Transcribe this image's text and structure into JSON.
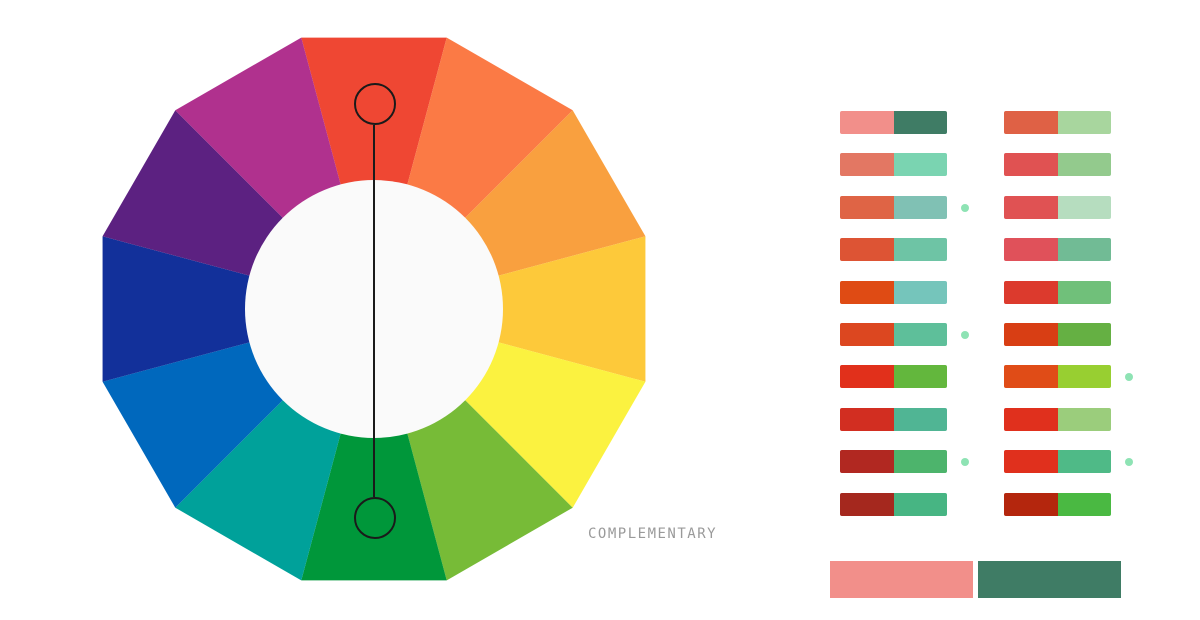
{
  "wheel": {
    "segments": [
      "#ef4733",
      "#fb7a45",
      "#f9a03f",
      "#fdc93a",
      "#fbf240",
      "#77bb37",
      "#00973a",
      "#00a19a",
      "#0068bd",
      "#12309a",
      "#5c2181",
      "#b0318e"
    ],
    "center_color": "#fafafa",
    "handle_color": "#1a1a1a"
  },
  "scheme": {
    "label": "COMPLEMENTARY"
  },
  "palettes": {
    "accent": "#8ee3b4",
    "left": [
      {
        "a": "#f28f8a",
        "b": "#3f7c65",
        "marked": false
      },
      {
        "a": "#e37763",
        "b": "#7ad4b1",
        "marked": false
      },
      {
        "a": "#df6445",
        "b": "#80c1b4",
        "marked": true
      },
      {
        "a": "#dd5434",
        "b": "#6ec4a5",
        "marked": false
      },
      {
        "a": "#df4b14",
        "b": "#75c5bb",
        "marked": false
      },
      {
        "a": "#dc4720",
        "b": "#5ebf9a",
        "marked": true
      },
      {
        "a": "#e1301b",
        "b": "#63b73d",
        "marked": false
      },
      {
        "a": "#d22e21",
        "b": "#50b594",
        "marked": false
      },
      {
        "a": "#b12821",
        "b": "#4db46c",
        "marked": true
      },
      {
        "a": "#a5281e",
        "b": "#47b583",
        "marked": false
      }
    ],
    "right": [
      {
        "a": "#df6145",
        "b": "#a8d69e",
        "marked": false
      },
      {
        "a": "#e05252",
        "b": "#93ca8d",
        "marked": false
      },
      {
        "a": "#e05253",
        "b": "#b6ddbf",
        "marked": false
      },
      {
        "a": "#e0515a",
        "b": "#71bb95",
        "marked": false
      },
      {
        "a": "#dc3a2d",
        "b": "#70c07a",
        "marked": false
      },
      {
        "a": "#d83e14",
        "b": "#65b043",
        "marked": false
      },
      {
        "a": "#e04c17",
        "b": "#98cf31",
        "marked": true
      },
      {
        "a": "#e0301d",
        "b": "#9bcd7c",
        "marked": false
      },
      {
        "a": "#e0301d",
        "b": "#4fba87",
        "marked": true
      },
      {
        "a": "#b4260d",
        "b": "#4ab942",
        "marked": false
      }
    ]
  },
  "preview": {
    "a": "#f28f8a",
    "b": "#3f7c65"
  }
}
